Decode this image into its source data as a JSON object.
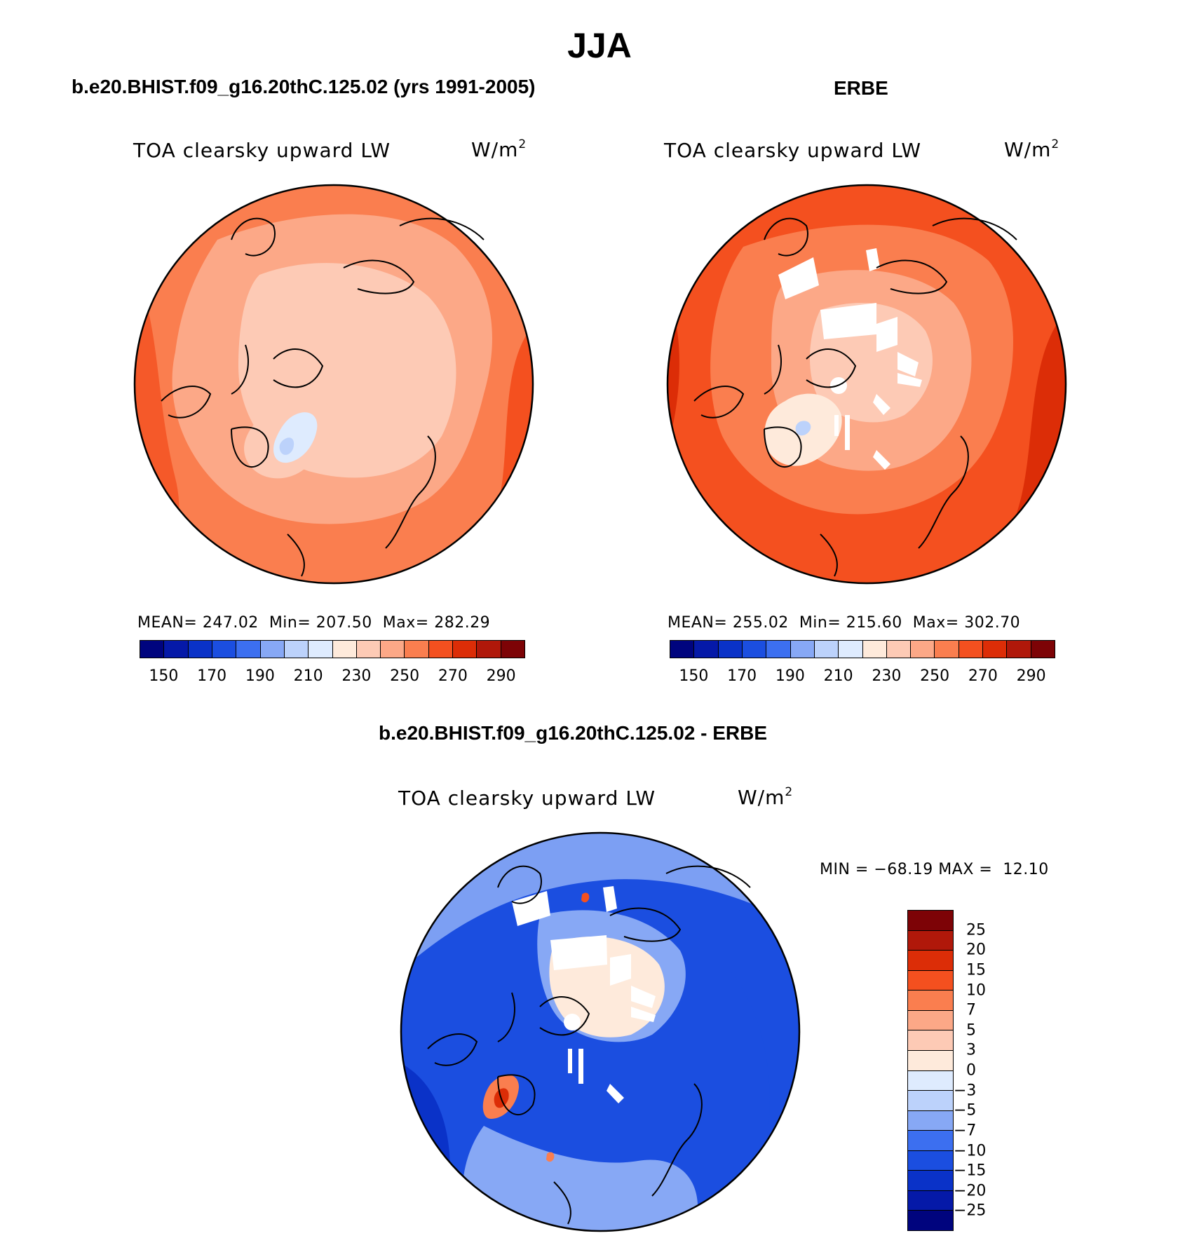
{
  "page": {
    "title": "JJA"
  },
  "chart_data": [
    {
      "type": "heatmap",
      "projection": "north polar stereographic",
      "title": "b.e20.BHIST.f09_g16.20thC.125.02 (yrs 1991-2005)",
      "variable": "TOA clearsky upward LW",
      "units": {
        "base": "W/m",
        "exp": "2"
      },
      "stats": {
        "mean_label": "MEAN=",
        "mean": "247.02",
        "min_label": "Min=",
        "min": "207.50",
        "max_label": "Max=",
        "max": "282.29"
      },
      "colorbar": {
        "levels": [
          150,
          160,
          170,
          180,
          190,
          200,
          210,
          220,
          230,
          240,
          250,
          260,
          270,
          280,
          290
        ],
        "tick_labels": [
          "150",
          "170",
          "190",
          "210",
          "230",
          "250",
          "270",
          "290"
        ],
        "colors": [
          "#00047e",
          "#0519a8",
          "#0a32c8",
          "#1b4ee0",
          "#3c6ff0",
          "#87a8f5",
          "#bcd2fb",
          "#deebfe",
          "#feeadb",
          "#fdcab5",
          "#fca887",
          "#fa7e4f",
          "#f4501f",
          "#dc2d07",
          "#b0180a",
          "#7d0306"
        ]
      }
    },
    {
      "type": "heatmap",
      "projection": "north polar stereographic",
      "title": "ERBE",
      "variable": "TOA clearsky upward LW",
      "units": {
        "base": "W/m",
        "exp": "2"
      },
      "stats": {
        "mean_label": "MEAN=",
        "mean": "255.02",
        "min_label": "Min=",
        "min": "215.60",
        "max_label": "Max=",
        "max": "302.70"
      },
      "colorbar": {
        "levels": [
          150,
          160,
          170,
          180,
          190,
          200,
          210,
          220,
          230,
          240,
          250,
          260,
          270,
          280,
          290
        ],
        "tick_labels": [
          "150",
          "170",
          "190",
          "210",
          "230",
          "250",
          "270",
          "290"
        ],
        "colors": [
          "#00047e",
          "#0519a8",
          "#0a32c8",
          "#1b4ee0",
          "#3c6ff0",
          "#87a8f5",
          "#bcd2fb",
          "#deebfe",
          "#feeadb",
          "#fdcab5",
          "#fca887",
          "#fa7e4f",
          "#f4501f",
          "#dc2d07",
          "#b0180a",
          "#7d0306"
        ]
      }
    },
    {
      "type": "heatmap",
      "projection": "north polar stereographic",
      "title": "b.e20.BHIST.f09_g16.20thC.125.02 - ERBE",
      "variable": "TOA clearsky upward LW",
      "units": {
        "base": "W/m",
        "exp": "2"
      },
      "stats": {
        "min_label": "MIN =",
        "min": "−68.19",
        "max_label": "MAX =",
        "max": "12.10"
      },
      "colorbar": {
        "levels": [
          -25,
          -20,
          -15,
          -10,
          -7,
          -5,
          -3,
          0,
          3,
          5,
          7,
          10,
          15,
          20,
          25
        ],
        "tick_labels": [
          "25",
          "20",
          "15",
          "10",
          "7",
          "5",
          "3",
          "0",
          "−3",
          "−5",
          "−7",
          "−10",
          "−15",
          "−20",
          "−25"
        ],
        "colors_top_to_bottom": [
          "#7d0306",
          "#b0180a",
          "#dc2d07",
          "#f4501f",
          "#fa7e4f",
          "#fca887",
          "#fdcab5",
          "#feeadb",
          "#deebfe",
          "#bcd2fb",
          "#87a8f5",
          "#3c6ff0",
          "#1b4ee0",
          "#0a32c8",
          "#0519a8",
          "#00047e"
        ]
      }
    }
  ]
}
